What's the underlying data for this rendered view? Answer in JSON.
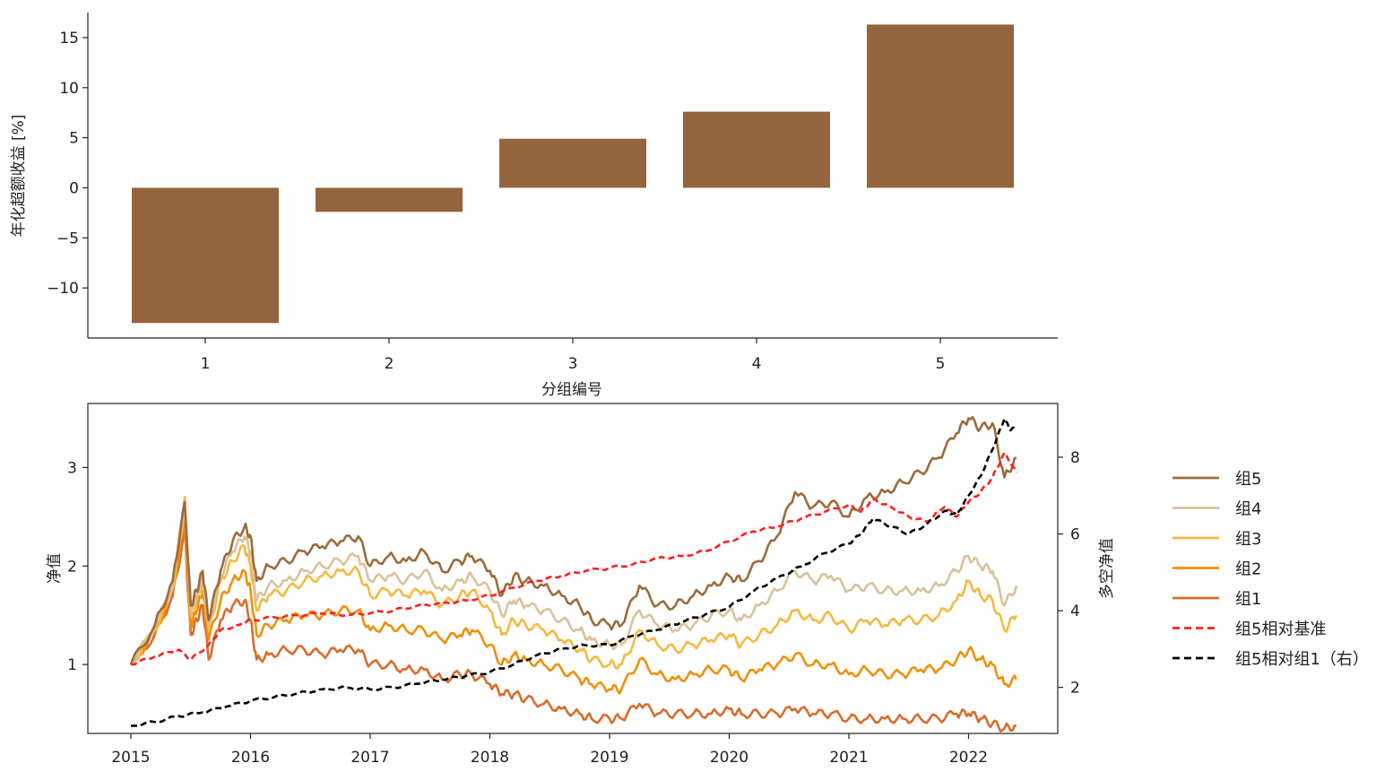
{
  "chart_data": [
    {
      "type": "bar",
      "categories": [
        "1",
        "2",
        "3",
        "4",
        "5"
      ],
      "values": [
        -13.5,
        -2.4,
        4.9,
        7.6,
        16.3
      ],
      "xlabel": "分组编号",
      "ylabel": "年化超额收益 [%]",
      "ylim": [
        -15,
        17.5
      ],
      "yticks": [
        "−10",
        "−5",
        "0",
        "5",
        "10",
        "15"
      ],
      "ytick_values": [
        -10,
        -5,
        0,
        5,
        10,
        15
      ],
      "color": "#94643c",
      "grid": false
    },
    {
      "type": "line",
      "x_range": [
        "2015-01-05",
        "2022-05-31"
      ],
      "xticks": [
        "2015",
        "2016",
        "2017",
        "2018",
        "2019",
        "2020",
        "2021",
        "2022"
      ],
      "ylabel": "净值",
      "y2label": "多空净值",
      "ylim": [
        0.3,
        3.65
      ],
      "y2lim": [
        0.8,
        9.4
      ],
      "yticks": [
        "1",
        "2",
        "3"
      ],
      "y2ticks": [
        "2",
        "4",
        "6",
        "8"
      ],
      "legend": "outside-right",
      "grid": false,
      "series": [
        {
          "name": "组5",
          "color": "#9c6b3c",
          "style": "solid",
          "axis": "left",
          "x": [
            2015.0,
            2015.2,
            2015.35,
            2015.45,
            2015.5,
            2015.55,
            2015.6,
            2015.65,
            2015.75,
            2015.85,
            2015.95,
            2016.0,
            2016.05,
            2016.15,
            2016.3,
            2016.45,
            2016.6,
            2016.75,
            2016.9,
            2017.0,
            2017.15,
            2017.3,
            2017.45,
            2017.6,
            2017.75,
            2017.85,
            2018.0,
            2018.1,
            2018.2,
            2018.3,
            2018.45,
            2018.6,
            2018.75,
            2018.85,
            2019.0,
            2019.1,
            2019.25,
            2019.4,
            2019.55,
            2019.7,
            2019.85,
            2020.0,
            2020.1,
            2020.25,
            2020.4,
            2020.55,
            2020.7,
            2020.85,
            2021.0,
            2021.15,
            2021.3,
            2021.45,
            2021.6,
            2021.75,
            2021.9,
            2022.0,
            2022.1,
            2022.2,
            2022.3,
            2022.4
          ],
          "y": [
            1.0,
            1.4,
            1.85,
            2.65,
            1.6,
            1.75,
            1.95,
            1.45,
            1.95,
            2.25,
            2.4,
            2.3,
            1.85,
            2.0,
            2.05,
            2.15,
            2.2,
            2.25,
            2.3,
            2.0,
            2.1,
            2.05,
            2.15,
            1.95,
            2.05,
            2.1,
            1.95,
            1.7,
            1.9,
            1.85,
            1.8,
            1.7,
            1.6,
            1.45,
            1.4,
            1.4,
            1.8,
            1.6,
            1.6,
            1.7,
            1.8,
            1.9,
            1.85,
            2.05,
            2.3,
            2.75,
            2.6,
            2.65,
            2.5,
            2.7,
            2.75,
            2.85,
            2.95,
            3.1,
            3.35,
            3.5,
            3.4,
            3.45,
            2.9,
            3.1
          ]
        },
        {
          "name": "组4",
          "color": "#d9c29a",
          "style": "solid",
          "axis": "left",
          "x": [
            2015.0,
            2015.2,
            2015.35,
            2015.45,
            2015.5,
            2015.55,
            2015.6,
            2015.65,
            2015.75,
            2015.85,
            2015.95,
            2016.0,
            2016.05,
            2016.15,
            2016.3,
            2016.45,
            2016.6,
            2016.75,
            2016.9,
            2017.0,
            2017.15,
            2017.3,
            2017.45,
            2017.6,
            2017.75,
            2017.85,
            2018.0,
            2018.1,
            2018.2,
            2018.3,
            2018.45,
            2018.6,
            2018.75,
            2018.85,
            2019.0,
            2019.1,
            2019.25,
            2019.4,
            2019.55,
            2019.7,
            2019.85,
            2020.0,
            2020.1,
            2020.25,
            2020.4,
            2020.55,
            2020.7,
            2020.85,
            2021.0,
            2021.15,
            2021.3,
            2021.45,
            2021.6,
            2021.75,
            2021.9,
            2022.0,
            2022.1,
            2022.2,
            2022.3,
            2022.4
          ],
          "y": [
            1.0,
            1.38,
            1.8,
            2.6,
            1.55,
            1.7,
            1.9,
            1.4,
            1.9,
            2.15,
            2.3,
            2.15,
            1.65,
            1.8,
            1.85,
            1.95,
            2.0,
            2.05,
            2.1,
            1.85,
            1.9,
            1.85,
            1.95,
            1.75,
            1.85,
            1.9,
            1.75,
            1.5,
            1.65,
            1.6,
            1.55,
            1.45,
            1.35,
            1.25,
            1.2,
            1.2,
            1.55,
            1.4,
            1.35,
            1.4,
            1.5,
            1.55,
            1.45,
            1.6,
            1.75,
            1.95,
            1.85,
            1.9,
            1.75,
            1.8,
            1.75,
            1.75,
            1.75,
            1.8,
            1.95,
            2.1,
            2.0,
            1.95,
            1.6,
            1.8
          ]
        },
        {
          "name": "组3",
          "color": "#f4b942",
          "style": "solid",
          "axis": "left",
          "x": [
            2015.0,
            2015.2,
            2015.35,
            2015.45,
            2015.5,
            2015.55,
            2015.6,
            2015.65,
            2015.75,
            2015.85,
            2015.95,
            2016.0,
            2016.05,
            2016.15,
            2016.3,
            2016.45,
            2016.6,
            2016.75,
            2016.9,
            2017.0,
            2017.15,
            2017.3,
            2017.45,
            2017.6,
            2017.75,
            2017.85,
            2018.0,
            2018.1,
            2018.2,
            2018.3,
            2018.45,
            2018.6,
            2018.75,
            2018.85,
            2019.0,
            2019.1,
            2019.25,
            2019.4,
            2019.55,
            2019.7,
            2019.85,
            2020.0,
            2020.1,
            2020.25,
            2020.4,
            2020.55,
            2020.7,
            2020.85,
            2021.0,
            2021.15,
            2021.3,
            2021.45,
            2021.6,
            2021.75,
            2021.9,
            2022.0,
            2022.1,
            2022.2,
            2022.3,
            2022.4
          ],
          "y": [
            1.0,
            1.35,
            1.78,
            2.7,
            1.5,
            1.65,
            1.85,
            1.35,
            1.85,
            2.05,
            2.2,
            2.0,
            1.55,
            1.7,
            1.75,
            1.85,
            1.9,
            1.95,
            1.95,
            1.7,
            1.75,
            1.7,
            1.75,
            1.6,
            1.7,
            1.75,
            1.55,
            1.3,
            1.45,
            1.4,
            1.35,
            1.25,
            1.15,
            1.05,
            1.0,
            1.0,
            1.35,
            1.2,
            1.15,
            1.2,
            1.25,
            1.3,
            1.2,
            1.3,
            1.4,
            1.55,
            1.45,
            1.5,
            1.35,
            1.45,
            1.4,
            1.45,
            1.45,
            1.5,
            1.65,
            1.85,
            1.7,
            1.65,
            1.35,
            1.5
          ]
        },
        {
          "name": "组2",
          "color": "#f0900a",
          "style": "solid",
          "axis": "left",
          "x": [
            2015.0,
            2015.2,
            2015.35,
            2015.45,
            2015.5,
            2015.55,
            2015.6,
            2015.65,
            2015.75,
            2015.85,
            2015.95,
            2016.0,
            2016.05,
            2016.15,
            2016.3,
            2016.45,
            2016.6,
            2016.75,
            2016.9,
            2017.0,
            2017.15,
            2017.3,
            2017.45,
            2017.6,
            2017.75,
            2017.85,
            2018.0,
            2018.1,
            2018.2,
            2018.3,
            2018.45,
            2018.6,
            2018.75,
            2018.85,
            2019.0,
            2019.1,
            2019.25,
            2019.4,
            2019.55,
            2019.7,
            2019.85,
            2020.0,
            2020.1,
            2020.25,
            2020.4,
            2020.55,
            2020.7,
            2020.85,
            2021.0,
            2021.15,
            2021.3,
            2021.45,
            2021.6,
            2021.75,
            2021.9,
            2022.0,
            2022.1,
            2022.2,
            2022.3,
            2022.4
          ],
          "y": [
            1.0,
            1.32,
            1.75,
            2.45,
            1.4,
            1.55,
            1.75,
            1.25,
            1.65,
            1.85,
            1.95,
            1.75,
            1.3,
            1.4,
            1.45,
            1.5,
            1.5,
            1.55,
            1.55,
            1.35,
            1.4,
            1.35,
            1.35,
            1.25,
            1.3,
            1.35,
            1.2,
            1.0,
            1.1,
            1.05,
            1.0,
            0.95,
            0.85,
            0.8,
            0.75,
            0.75,
            1.05,
            0.9,
            0.85,
            0.9,
            0.95,
            0.95,
            0.85,
            0.95,
            1.0,
            1.1,
            1.0,
            1.0,
            0.9,
            0.95,
            0.9,
            0.9,
            0.95,
            0.95,
            1.05,
            1.15,
            1.05,
            1.0,
            0.8,
            0.85
          ]
        },
        {
          "name": "组1",
          "color": "#d96c2a",
          "style": "solid",
          "axis": "left",
          "x": [
            2015.0,
            2015.2,
            2015.35,
            2015.45,
            2015.5,
            2015.55,
            2015.6,
            2015.65,
            2015.75,
            2015.85,
            2015.95,
            2016.0,
            2016.05,
            2016.15,
            2016.3,
            2016.45,
            2016.6,
            2016.75,
            2016.9,
            2017.0,
            2017.15,
            2017.3,
            2017.45,
            2017.6,
            2017.75,
            2017.85,
            2018.0,
            2018.1,
            2018.2,
            2018.3,
            2018.45,
            2018.6,
            2018.75,
            2018.85,
            2019.0,
            2019.1,
            2019.25,
            2019.4,
            2019.55,
            2019.7,
            2019.85,
            2020.0,
            2020.1,
            2020.25,
            2020.4,
            2020.55,
            2020.7,
            2020.85,
            2021.0,
            2021.15,
            2021.3,
            2021.45,
            2021.6,
            2021.75,
            2021.9,
            2022.0,
            2022.1,
            2022.2,
            2022.3,
            2022.4
          ],
          "y": [
            1.0,
            1.3,
            1.7,
            2.35,
            1.3,
            1.45,
            1.6,
            1.05,
            1.45,
            1.6,
            1.65,
            1.45,
            1.05,
            1.1,
            1.15,
            1.15,
            1.1,
            1.15,
            1.15,
            1.0,
            1.0,
            0.95,
            0.95,
            0.85,
            0.9,
            0.9,
            0.8,
            0.7,
            0.7,
            0.65,
            0.6,
            0.55,
            0.5,
            0.45,
            0.45,
            0.45,
            0.6,
            0.5,
            0.5,
            0.5,
            0.5,
            0.55,
            0.5,
            0.5,
            0.5,
            0.55,
            0.5,
            0.5,
            0.45,
            0.45,
            0.45,
            0.45,
            0.45,
            0.45,
            0.5,
            0.5,
            0.45,
            0.4,
            0.35,
            0.38
          ]
        },
        {
          "name": "组5相对基准",
          "color": "#ff2020",
          "style": "dashed",
          "axis": "left",
          "x": [
            2015.0,
            2015.2,
            2015.4,
            2015.5,
            2015.65,
            2015.75,
            2015.9,
            2016.0,
            2016.2,
            2016.4,
            2016.6,
            2016.8,
            2017.0,
            2017.2,
            2017.4,
            2017.6,
            2017.8,
            2018.0,
            2018.2,
            2018.4,
            2018.6,
            2018.8,
            2019.0,
            2019.2,
            2019.4,
            2019.6,
            2019.8,
            2020.0,
            2020.2,
            2020.4,
            2020.6,
            2020.8,
            2021.0,
            2021.1,
            2021.2,
            2021.35,
            2021.5,
            2021.65,
            2021.8,
            2021.9,
            2022.0,
            2022.1,
            2022.2,
            2022.3,
            2022.4
          ],
          "y": [
            1.0,
            1.08,
            1.15,
            1.05,
            1.2,
            1.35,
            1.4,
            1.45,
            1.48,
            1.5,
            1.52,
            1.5,
            1.52,
            1.55,
            1.6,
            1.62,
            1.65,
            1.7,
            1.78,
            1.85,
            1.9,
            1.95,
            1.98,
            2.02,
            2.08,
            2.1,
            2.15,
            2.25,
            2.35,
            2.4,
            2.48,
            2.55,
            2.62,
            2.55,
            2.68,
            2.6,
            2.5,
            2.45,
            2.6,
            2.5,
            2.65,
            2.75,
            2.9,
            3.15,
            2.95
          ]
        },
        {
          "name": "组5相对组1（右）",
          "color": "#000000",
          "style": "dashed",
          "axis": "right",
          "x": [
            2015.0,
            2015.2,
            2015.4,
            2015.6,
            2015.8,
            2016.0,
            2016.2,
            2016.4,
            2016.6,
            2016.8,
            2017.0,
            2017.2,
            2017.4,
            2017.6,
            2017.8,
            2018.0,
            2018.2,
            2018.4,
            2018.6,
            2018.8,
            2019.0,
            2019.2,
            2019.4,
            2019.6,
            2019.8,
            2020.0,
            2020.2,
            2020.4,
            2020.6,
            2020.8,
            2021.0,
            2021.1,
            2021.2,
            2021.35,
            2021.5,
            2021.65,
            2021.8,
            2021.9,
            2022.0,
            2022.1,
            2022.2,
            2022.3,
            2022.35,
            2022.4
          ],
          "y": [
            1.0,
            1.1,
            1.25,
            1.35,
            1.5,
            1.65,
            1.75,
            1.85,
            1.95,
            2.0,
            1.95,
            2.0,
            2.1,
            2.2,
            2.3,
            2.4,
            2.6,
            2.85,
            3.0,
            3.1,
            3.1,
            3.35,
            3.5,
            3.7,
            3.9,
            4.1,
            4.5,
            4.85,
            5.15,
            5.5,
            5.75,
            6.0,
            6.4,
            6.2,
            6.0,
            6.25,
            6.6,
            6.5,
            7.0,
            7.5,
            8.2,
            9.0,
            8.7,
            8.8
          ]
        }
      ]
    }
  ]
}
